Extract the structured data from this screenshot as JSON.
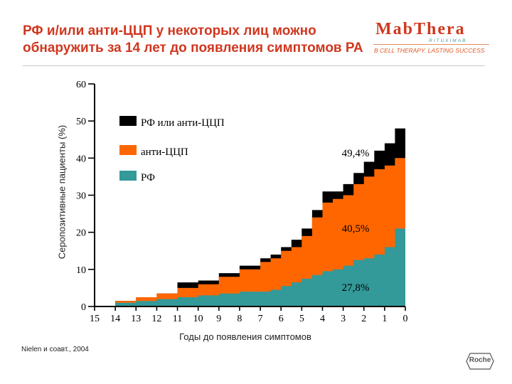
{
  "header": {
    "title_line1": "РФ и/или анти-ЦЦП у некоторых лиц можно",
    "title_line2": "обнаружить за 14 лет до появления симптомов РА"
  },
  "brand": {
    "name": "MabThera",
    "subname": "RITUXIMAB",
    "tagline": "B CELL THERAPY. LASTING SUCCESS"
  },
  "colors": {
    "black": "#000000",
    "orange": "#ff6600",
    "teal": "#339999",
    "title": "#d0371f"
  },
  "chart_data": {
    "type": "area",
    "title": "",
    "xlabel": "Годы до появления симптомов",
    "ylabel": "Серопозитивные пациенты (%)",
    "xlim": [
      15,
      0
    ],
    "ylim": [
      0,
      60
    ],
    "x_ticks": [
      "15",
      "14",
      "13",
      "12",
      "11",
      "10",
      "9",
      "8",
      "7",
      "6",
      "5",
      "4",
      "3",
      "2",
      "1",
      "0"
    ],
    "y_ticks": [
      "0",
      "10",
      "20",
      "30",
      "40",
      "50",
      "60"
    ],
    "legend": [
      {
        "label": "РФ или анти-ЦЦП",
        "color": "#000000"
      },
      {
        "label": "анти-ЦЦП",
        "color": "#ff6600"
      },
      {
        "label": "РФ",
        "color": "#339999"
      }
    ],
    "series": [
      {
        "name": "РФ или анти-ЦЦП",
        "color": "#000000",
        "x": [
          15,
          14.0,
          13.0,
          12.0,
          11.0,
          10.0,
          9.0,
          8.0,
          7.0,
          6.5,
          6.0,
          5.5,
          5.0,
          4.5,
          4.0,
          3.5,
          3.0,
          2.5,
          2.0,
          1.5,
          1.0,
          0.5,
          0
        ],
        "values": [
          0,
          1.5,
          2.5,
          3.5,
          6.5,
          7.0,
          9.0,
          11.0,
          13.0,
          14.0,
          16.0,
          18.0,
          21.0,
          26.0,
          31.0,
          31.0,
          33.0,
          36.0,
          39.0,
          42.0,
          44.0,
          48.0,
          49.4
        ]
      },
      {
        "name": "анти-ЦЦП",
        "color": "#ff6600",
        "x": [
          15,
          14.0,
          13.0,
          12.0,
          11.0,
          10.0,
          9.0,
          8.0,
          7.0,
          6.5,
          6.0,
          5.5,
          5.0,
          4.5,
          4.0,
          3.5,
          3.0,
          2.5,
          2.0,
          1.5,
          1.0,
          0.5,
          0
        ],
        "values": [
          0,
          1.5,
          2.5,
          3.5,
          5.0,
          6.0,
          8.0,
          10.0,
          12.0,
          13.0,
          15.0,
          16.0,
          19.0,
          24.0,
          28.0,
          29.0,
          30.0,
          33.0,
          35.0,
          37.0,
          38.0,
          40.0,
          40.5
        ]
      },
      {
        "name": "РФ",
        "color": "#339999",
        "x": [
          15,
          14.0,
          13.0,
          12.0,
          11.0,
          10.0,
          9.0,
          8.0,
          7.0,
          6.5,
          6.0,
          5.5,
          5.0,
          4.5,
          4.0,
          3.5,
          3.0,
          2.5,
          2.0,
          1.5,
          1.0,
          0.5,
          0
        ],
        "values": [
          0,
          1.0,
          1.5,
          2.0,
          2.5,
          3.0,
          3.5,
          4.0,
          4.0,
          4.5,
          5.5,
          6.5,
          7.5,
          8.5,
          9.5,
          10.0,
          11.0,
          12.5,
          13.0,
          14.0,
          16.0,
          21.0,
          27.8
        ]
      }
    ],
    "annotations": [
      "49,4%",
      "40,5%",
      "27,8%"
    ]
  },
  "source": "Nielen и соавт., 2004",
  "footer_logo": "Roche"
}
